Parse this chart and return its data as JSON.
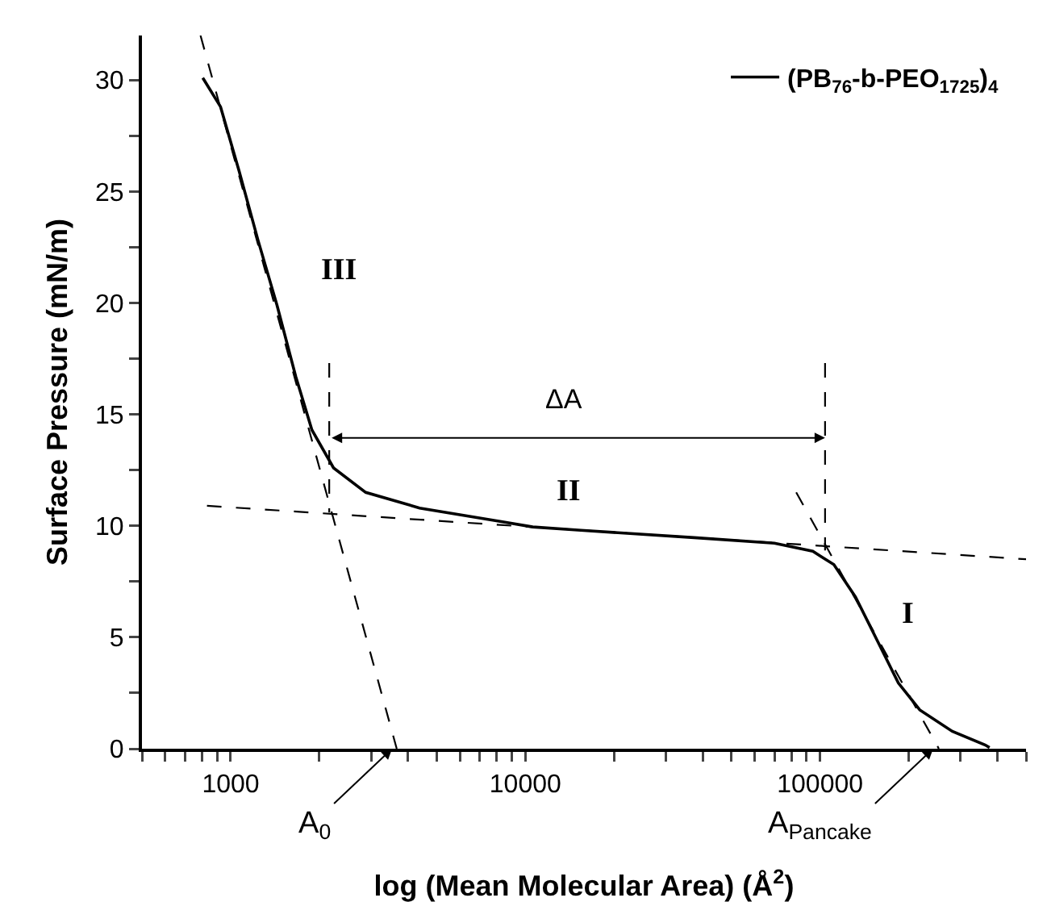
{
  "chart_data": {
    "type": "line",
    "xlabel": "log (Mean Molecular Area) (Å$^{2}$)",
    "ylabel": "Surface Pressure (mN/m)",
    "log": "x",
    "xlim": [
      500,
      500000
    ],
    "xticks": [
      {
        "value": 500,
        "label": null
      },
      {
        "value": 600,
        "label": null
      },
      {
        "value": 700,
        "label": null
      },
      {
        "value": 800,
        "label": null
      },
      {
        "value": 900,
        "label": null
      },
      1000,
      {
        "value": 2000,
        "label": null
      },
      {
        "value": 3000,
        "label": null
      },
      {
        "value": 4000,
        "label": null
      },
      {
        "value": 5000,
        "label": null
      },
      {
        "value": 6000,
        "label": null
      },
      {
        "value": 7000,
        "label": null
      },
      {
        "value": 8000,
        "label": null
      },
      {
        "value": 9000,
        "label": null
      },
      10000,
      {
        "value": 20000,
        "label": null
      },
      {
        "value": 30000,
        "label": null
      },
      {
        "value": 40000,
        "label": null
      },
      {
        "value": 50000,
        "label": null
      },
      {
        "value": 60000,
        "label": null
      },
      {
        "value": 70000,
        "label": null
      },
      {
        "value": 80000,
        "label": null
      },
      {
        "value": 90000,
        "label": null
      },
      100000,
      {
        "value": 200000,
        "label": null
      },
      {
        "value": 300000,
        "label": null
      },
      {
        "value": 400000,
        "label": null
      },
      {
        "value": 500000,
        "label": null
      }
    ],
    "ylim": [
      0,
      32
    ],
    "yticks": [
      0,
      {
        "value": 2.5,
        "label": null
      },
      5,
      {
        "value": 7.5,
        "label": null
      },
      10,
      {
        "value": 12.5,
        "label": null
      },
      15,
      {
        "value": 17.5,
        "label": null
      },
      20,
      {
        "value": 22.5,
        "label": null
      },
      25,
      {
        "value": 27.5,
        "label": null
      },
      30
    ],
    "grid": false,
    "legend": "top right",
    "marker": "none",
    "series": [
      {
        "name": "(PB$_{76}$-b-PEO$_{1725}$)$_{4}$",
        "color": "#000000",
        "line_style": "solid",
        "x": [
          804,
          924,
          1069,
          1239,
          1436,
          1663,
          1887,
          2234,
          2873,
          4376,
          8208,
          10590,
          15430,
          37400,
          70000,
          94500,
          111400,
          131900,
          156000,
          184400,
          218000,
          281000,
          363000,
          376000
        ],
        "values": [
          30.1,
          28.8,
          25.9,
          22.8,
          19.9,
          16.7,
          14.3,
          12.6,
          11.5,
          10.8,
          10.2,
          9.95,
          9.8,
          9.47,
          9.22,
          8.86,
          8.26,
          6.81,
          4.88,
          2.95,
          1.74,
          0.78,
          0.17,
          0.05
        ]
      },
      {
        "type": "line",
        "color": "#000000",
        "line_style": "dashed",
        "x": [
          790,
          3660
        ],
        "values": [
          32,
          0
        ]
      },
      {
        "type": "line",
        "color": "#000000",
        "line_style": "dashed",
        "x": [
          831,
          500000
        ],
        "values": [
          10.9,
          8.5
        ]
      },
      {
        "type": "line",
        "color": "#000000",
        "line_style": "dashed",
        "x": [
          83000,
          253000
        ],
        "values": [
          11.5,
          0
        ]
      },
      {
        "type": "line",
        "color": "#000000",
        "line_style": "dashed",
        "x": [
          2160,
          2160
        ],
        "values": [
          17.3,
          10.6
        ]
      },
      {
        "type": "line",
        "color": "#000000",
        "line_style": "dashed",
        "x": [
          104000,
          104000
        ],
        "values": [
          17.3,
          8.9
        ]
      }
    ],
    "annotations": [
      "ΔA",
      "III",
      "II",
      "I",
      {
        "text": "A$_{0}$",
        "x": 3530,
        "y": 0
      },
      {
        "text": "A$_{Pancake}$",
        "x": 242000,
        "y": 0
      }
    ]
  }
}
